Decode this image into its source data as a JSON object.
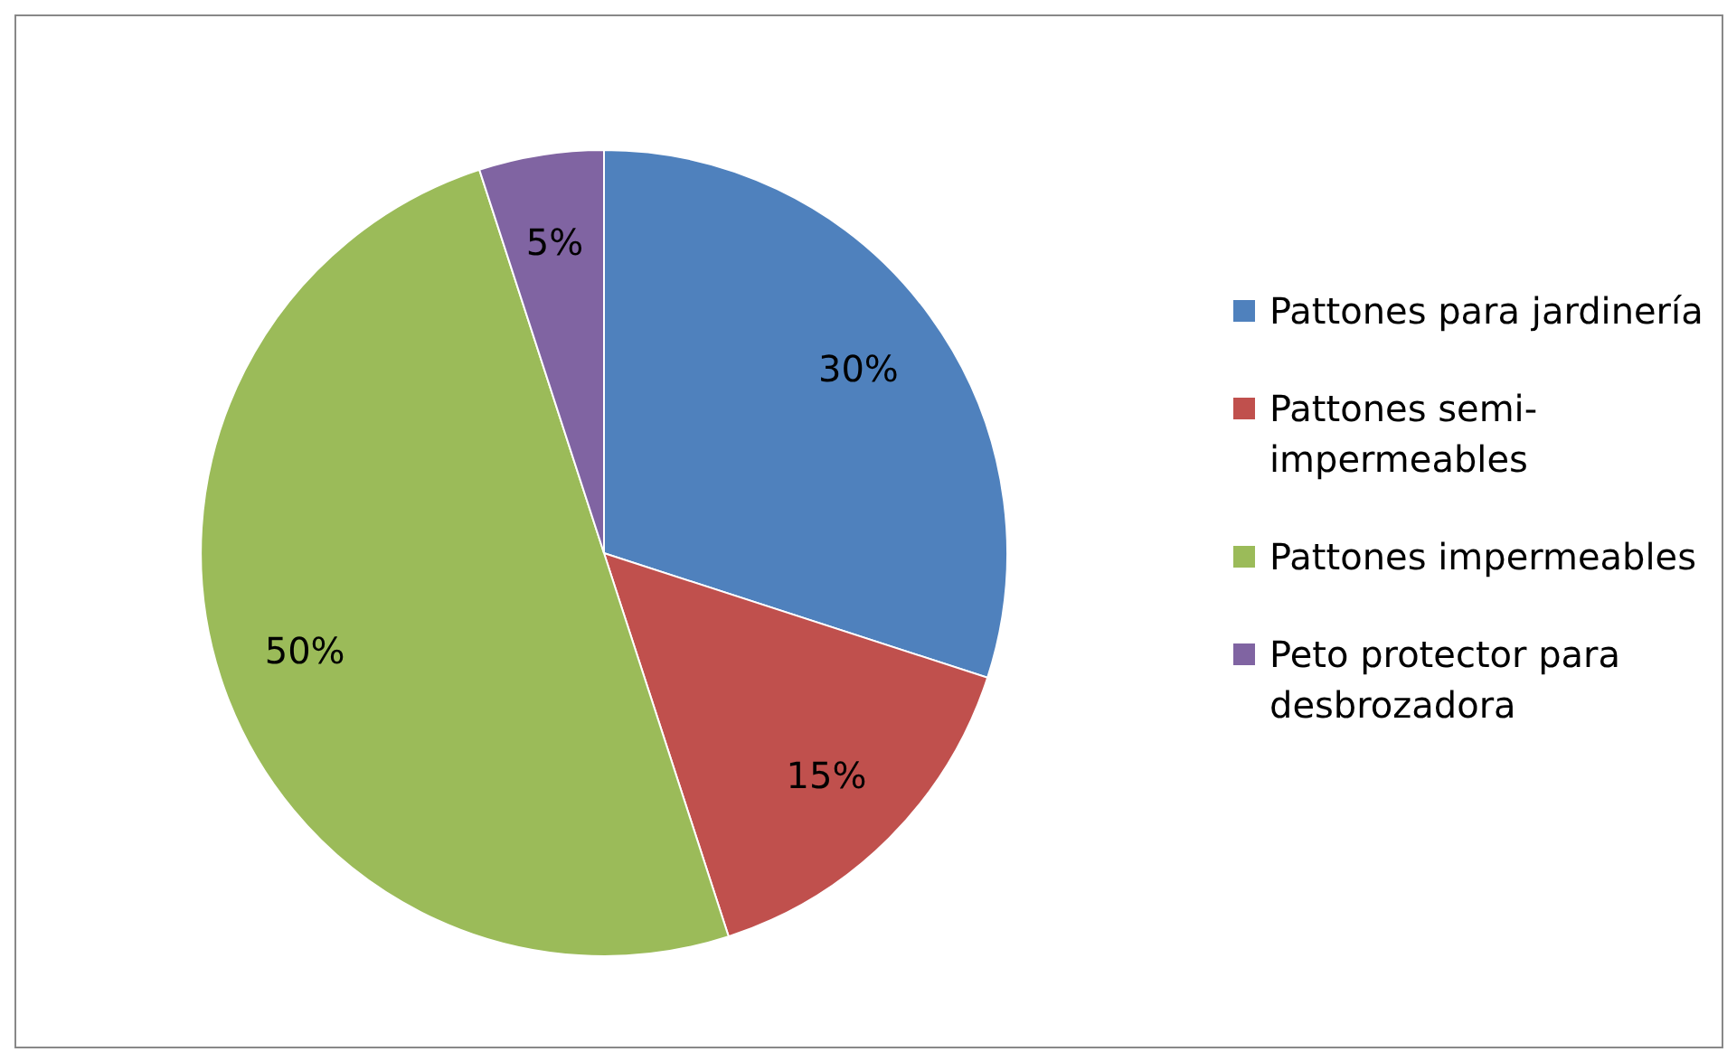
{
  "chart_data": {
    "type": "pie",
    "categories": [
      "Pattones para jardinería",
      "Pattones semi-impermeables",
      "Pattones impermeables",
      "Peto protector para desbrozadora"
    ],
    "values": [
      30,
      15,
      50,
      5
    ],
    "value_labels": [
      "30%",
      "15%",
      "50%",
      "5%"
    ],
    "colors": [
      "#4f81bd",
      "#c0504d",
      "#9bbb59",
      "#8064a2"
    ],
    "legend": "right"
  }
}
